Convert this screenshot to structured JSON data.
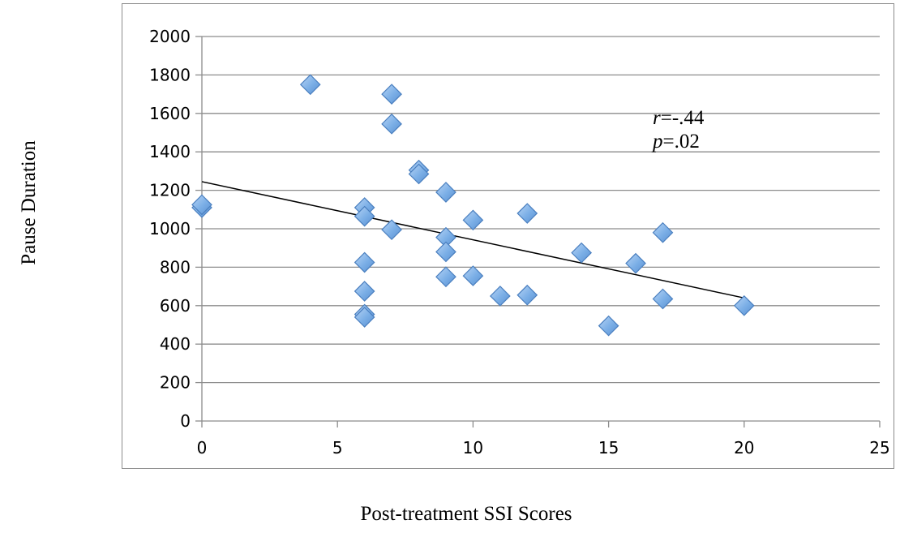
{
  "chart_data": {
    "type": "scatter",
    "title": "",
    "xlabel": "Post-treatment SSI Scores",
    "ylabel": "Pause Duration",
    "xlim": [
      0,
      25
    ],
    "ylim": [
      0,
      2000
    ],
    "x_ticks": [
      0,
      5,
      10,
      15,
      20,
      25
    ],
    "y_ticks": [
      0,
      200,
      400,
      600,
      800,
      1000,
      1200,
      1400,
      1600,
      1800,
      2000
    ],
    "grid": "horizontal",
    "marker_color": "#7aaee6",
    "marker_edge_color": "#4a7fbf",
    "trendline": {
      "x": [
        0,
        20
      ],
      "y": [
        1245,
        640
      ],
      "color": "#000000"
    },
    "annotation": {
      "r_symbol": "r",
      "r_value": "=-.44",
      "p_symbol": "p",
      "p_value": "=.02"
    },
    "points": [
      {
        "x": 0,
        "y": 1110
      },
      {
        "x": 0,
        "y": 1125
      },
      {
        "x": 4,
        "y": 1750
      },
      {
        "x": 6,
        "y": 1110
      },
      {
        "x": 6,
        "y": 1065
      },
      {
        "x": 6,
        "y": 825
      },
      {
        "x": 6,
        "y": 675
      },
      {
        "x": 6,
        "y": 555
      },
      {
        "x": 6,
        "y": 540
      },
      {
        "x": 7,
        "y": 1700
      },
      {
        "x": 7,
        "y": 1545
      },
      {
        "x": 7,
        "y": 995
      },
      {
        "x": 8,
        "y": 1305
      },
      {
        "x": 8,
        "y": 1285
      },
      {
        "x": 9,
        "y": 1190
      },
      {
        "x": 9,
        "y": 955
      },
      {
        "x": 9,
        "y": 880
      },
      {
        "x": 9,
        "y": 750
      },
      {
        "x": 10,
        "y": 1045
      },
      {
        "x": 10,
        "y": 755
      },
      {
        "x": 11,
        "y": 650
      },
      {
        "x": 12,
        "y": 1080
      },
      {
        "x": 12,
        "y": 655
      },
      {
        "x": 14,
        "y": 875
      },
      {
        "x": 15,
        "y": 495
      },
      {
        "x": 16,
        "y": 820
      },
      {
        "x": 17,
        "y": 980
      },
      {
        "x": 17,
        "y": 635
      },
      {
        "x": 20,
        "y": 600
      }
    ]
  }
}
